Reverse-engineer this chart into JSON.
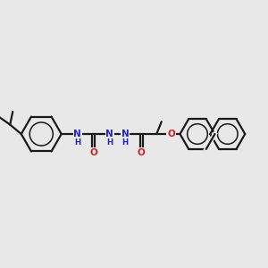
{
  "bg_color": "#e8e8e8",
  "bond_color": "#1a1a1a",
  "N_color": "#2222cc",
  "O_color": "#cc2222",
  "bond_lw": 1.6,
  "ring_lw": 1.6,
  "font_size_atom": 7.5,
  "font_size_H": 6.2,
  "xlim": [
    0,
    12
  ],
  "ylim": [
    0,
    10
  ]
}
